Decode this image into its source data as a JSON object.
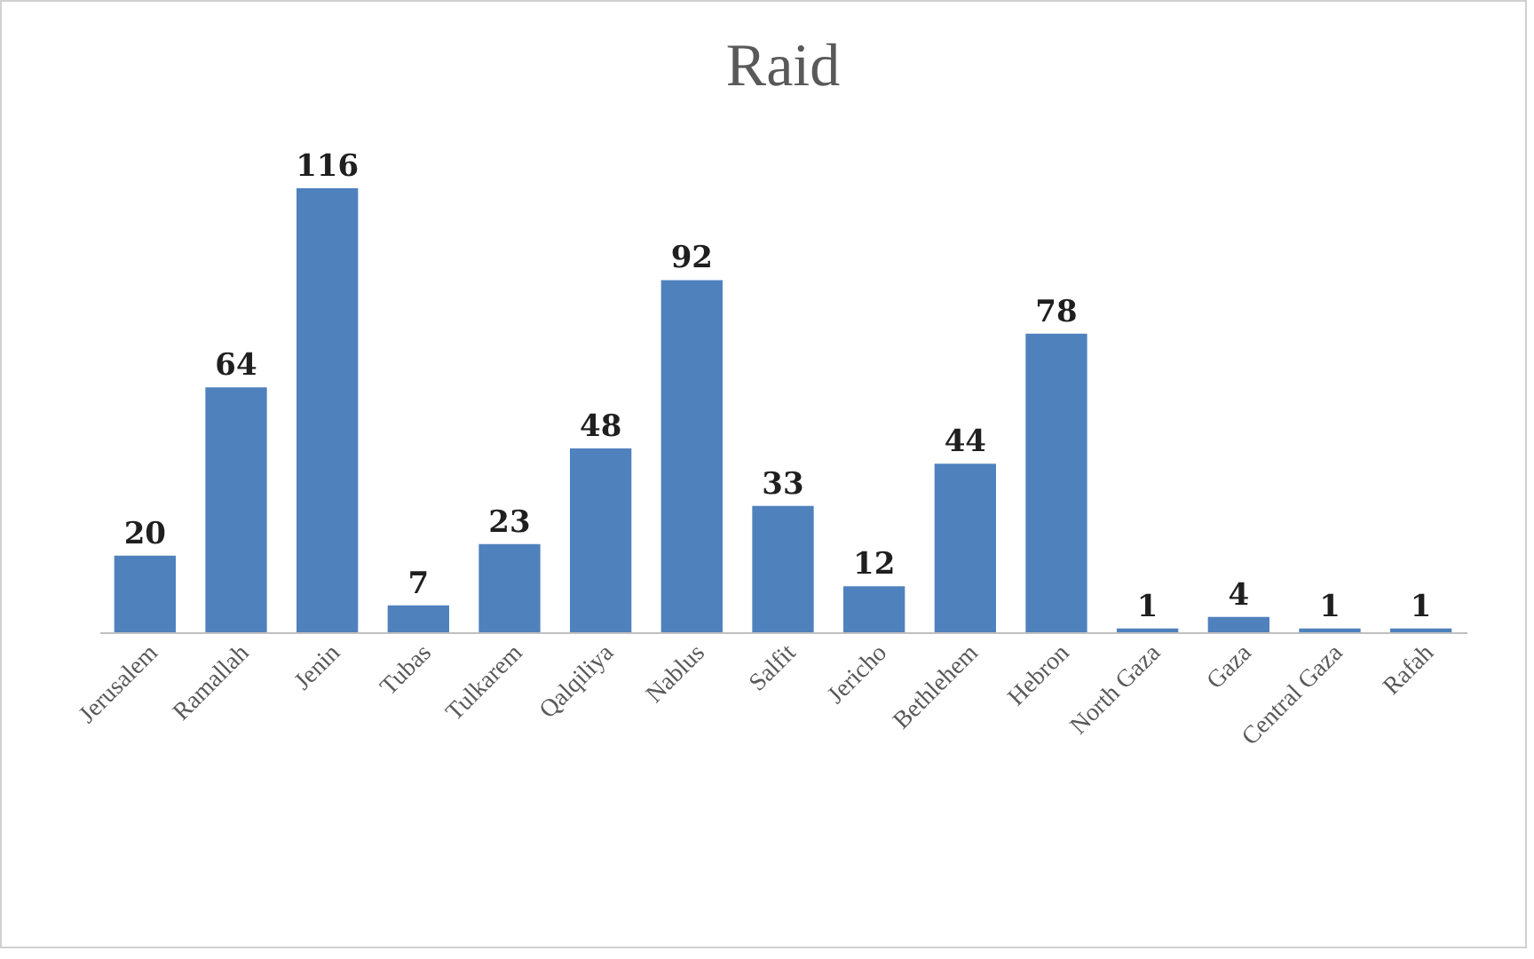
{
  "chart_data": {
    "type": "bar",
    "title": "Raid",
    "categories": [
      "Jerusalem",
      "Ramallah",
      "Jenin",
      "Tubas",
      "Tulkarem",
      "Qalqiliya",
      "Nablus",
      "Salfit",
      "Jericho",
      "Bethlehem",
      "Hebron",
      "North Gaza",
      "Gaza",
      "Central Gaza",
      "Rafah"
    ],
    "values": [
      20,
      64,
      116,
      7,
      23,
      48,
      92,
      33,
      12,
      44,
      78,
      1,
      4,
      1,
      1
    ],
    "color": "#4f81bd",
    "data_labels": true,
    "grid": false
  }
}
